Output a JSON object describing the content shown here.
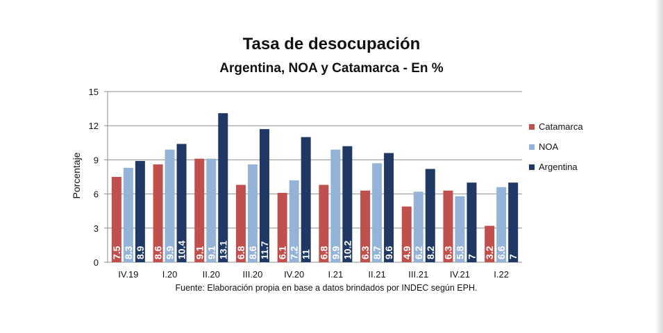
{
  "colors": {
    "catamarca": "#c0504d",
    "noa": "#95b3d7",
    "argentina": "#1f3864"
  },
  "chart_data": {
    "type": "bar",
    "title": "Tasa de desocupación",
    "subtitle": "Argentina, NOA y Catamarca  - En %",
    "xlabel": "",
    "ylabel": "Porcentaje",
    "ylim": [
      0,
      15
    ],
    "yticks": [
      "0",
      "3",
      "6",
      "9",
      "12",
      "15"
    ],
    "grid": true,
    "legend_position": "right",
    "categories": [
      "IV.19",
      "I.20",
      "II.20",
      "III.20",
      "IV.20",
      "I.21",
      "II.21",
      "III.21",
      "IV.21",
      "I.22"
    ],
    "series": [
      {
        "name": "Catamarca",
        "values": [
          7.5,
          8.6,
          9.1,
          6.8,
          6.1,
          6.8,
          6.3,
          4.9,
          6.3,
          3.2
        ],
        "labels": [
          "7.5",
          "8.6",
          "9.1",
          "6.8",
          "6.1",
          "6.8",
          "6.3",
          "4.9",
          "6.3",
          "3.2"
        ]
      },
      {
        "name": "NOA",
        "values": [
          8.3,
          9.9,
          9.1,
          8.6,
          7.2,
          9.9,
          8.7,
          6.2,
          5.8,
          6.6
        ],
        "labels": [
          "8.3",
          "9.9",
          "9.1",
          "8.6",
          "7.2",
          "9.9",
          "8.7",
          "6.2",
          "5.8",
          "6.6"
        ]
      },
      {
        "name": "Argentina",
        "values": [
          8.9,
          10.4,
          13.1,
          11.7,
          11,
          10.2,
          9.6,
          8.2,
          7,
          7
        ],
        "labels": [
          "8.9",
          "10.4",
          "13.1",
          "11.7",
          "11",
          "10.2",
          "9.6",
          "8.2",
          "7",
          "7"
        ]
      }
    ],
    "footnote": "Fuente:  Elaboración propia en base a datos brindados por INDEC según EPH."
  }
}
